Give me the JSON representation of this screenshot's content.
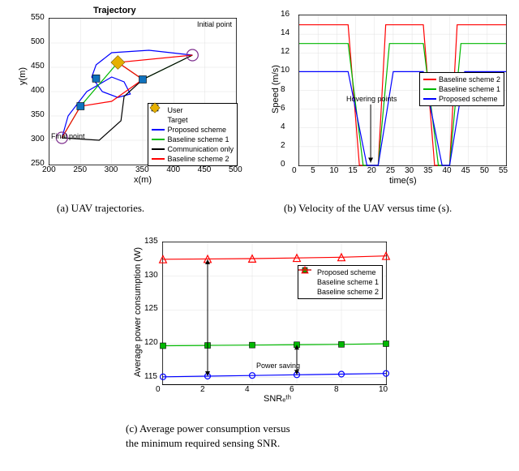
{
  "figA": {
    "type": "line-scatter",
    "title": "Trajectory",
    "xlabel": "x(m)",
    "ylabel": "y(m)",
    "xlim": [
      200,
      500
    ],
    "ylim": [
      250,
      550
    ],
    "xtick_step": 50,
    "ytick_step": 50,
    "grid_color": "#e0e0e0",
    "background_color": "#ffffff",
    "annotations": {
      "initial": "Initial point",
      "final": "Final point"
    },
    "users": {
      "color": "#1072bd",
      "marker": "square",
      "size": 9,
      "points": [
        [
          250,
          370
        ],
        [
          350,
          425
        ],
        [
          275,
          427
        ]
      ]
    },
    "target": {
      "color": "#e6b000",
      "marker": "diamond",
      "size": 11,
      "points": [
        [
          310,
          460
        ]
      ]
    },
    "markers_extra": {
      "initial_circle": {
        "x": 430,
        "y": 475,
        "stroke": "#7e2f8e"
      },
      "final_circle": {
        "x": 220,
        "y": 305,
        "stroke": "#7e2f8e"
      }
    },
    "series": {
      "proposed": {
        "color": "#0000ff",
        "width": 1.2,
        "pts": [
          [
            430,
            475
          ],
          [
            360,
            485
          ],
          [
            300,
            480
          ],
          [
            275,
            455
          ],
          [
            268,
            430
          ],
          [
            285,
            400
          ],
          [
            310,
            388
          ],
          [
            330,
            395
          ],
          [
            320,
            420
          ],
          [
            300,
            430
          ],
          [
            260,
            400
          ],
          [
            230,
            350
          ],
          [
            220,
            305
          ]
        ]
      },
      "baseline1": {
        "color": "#00b800",
        "width": 1.2,
        "pts": [
          [
            430,
            475
          ],
          [
            350,
            425
          ],
          [
            310,
            460
          ],
          [
            250,
            370
          ],
          [
            220,
            305
          ]
        ]
      },
      "commonly": {
        "color": "#000000",
        "width": 1.2,
        "pts": [
          [
            430,
            475
          ],
          [
            350,
            425
          ],
          [
            320,
            390
          ],
          [
            315,
            340
          ],
          [
            280,
            300
          ],
          [
            220,
            305
          ]
        ]
      },
      "baseline2": {
        "color": "#ff0000",
        "width": 1.2,
        "pts": [
          [
            430,
            475
          ],
          [
            310,
            460
          ],
          [
            350,
            425
          ],
          [
            300,
            380
          ],
          [
            250,
            370
          ],
          [
            220,
            305
          ]
        ]
      }
    },
    "legend": [
      {
        "label": "User",
        "type": "marker",
        "shape": "square",
        "color": "#1072bd"
      },
      {
        "label": "Target",
        "type": "marker",
        "shape": "diamond",
        "color": "#e6b000"
      },
      {
        "label": "Proposed scheme",
        "type": "line",
        "color": "#0000ff"
      },
      {
        "label": "Baseline scheme 1",
        "type": "line",
        "color": "#00b800"
      },
      {
        "label": "Communication only",
        "type": "line",
        "color": "#000000"
      },
      {
        "label": "Baseline scheme 2",
        "type": "line",
        "color": "#ff0000"
      }
    ]
  },
  "figB": {
    "type": "line",
    "xlabel": "time(s)",
    "ylabel": "Speed (m/s)",
    "xlim": [
      0,
      55
    ],
    "ylim": [
      0,
      16
    ],
    "xtick_step": 5,
    "ytick_step": 2,
    "grid_color": "#e0e0e0",
    "annotations": {
      "hover": "Hovering points"
    },
    "series": {
      "baseline2": {
        "color": "#ff0000",
        "width": 1.2,
        "pts": [
          [
            0,
            15
          ],
          [
            13,
            15
          ],
          [
            16,
            0
          ],
          [
            21,
            0
          ],
          [
            23,
            15
          ],
          [
            33,
            15
          ],
          [
            36,
            0
          ],
          [
            40,
            0
          ],
          [
            42,
            15
          ],
          [
            55,
            15
          ]
        ]
      },
      "baseline1": {
        "color": "#00b800",
        "width": 1.2,
        "pts": [
          [
            0,
            13
          ],
          [
            13,
            13
          ],
          [
            17,
            0
          ],
          [
            21,
            0
          ],
          [
            24,
            13
          ],
          [
            33,
            13
          ],
          [
            37,
            0
          ],
          [
            40,
            0
          ],
          [
            43,
            13
          ],
          [
            55,
            13
          ]
        ]
      },
      "proposed": {
        "color": "#0000ff",
        "width": 1.2,
        "pts": [
          [
            0,
            10
          ],
          [
            13,
            10
          ],
          [
            18,
            0
          ],
          [
            21,
            0
          ],
          [
            25,
            10
          ],
          [
            33,
            10
          ],
          [
            38,
            0
          ],
          [
            40,
            0
          ],
          [
            44,
            10
          ],
          [
            55,
            10
          ]
        ]
      }
    },
    "legend": [
      {
        "label": "Baseline scheme 2",
        "type": "line",
        "color": "#ff0000"
      },
      {
        "label": "Baseline scheme 1",
        "type": "line",
        "color": "#00b800"
      },
      {
        "label": "Proposed scheme",
        "type": "line",
        "color": "#0000ff"
      }
    ]
  },
  "figC": {
    "type": "line-marker",
    "xlabel": "SNRₑᵗʰ",
    "ylabel": "Average power consumption (W)",
    "xlim": [
      0,
      10
    ],
    "ylim": [
      114,
      135
    ],
    "xtick_step": 2,
    "yticks": [
      115,
      120,
      125,
      130,
      135
    ],
    "grid_color": "#e0e0e0",
    "annotations": {
      "saving": "Power saving"
    },
    "series": {
      "proposed": {
        "color": "#0000ff",
        "marker": "circle",
        "pts": [
          [
            0,
            115.1
          ],
          [
            2,
            115.2
          ],
          [
            4,
            115.3
          ],
          [
            6,
            115.4
          ],
          [
            8,
            115.5
          ],
          [
            10,
            115.6
          ]
        ]
      },
      "baseline1": {
        "color": "#00b800",
        "marker": "square",
        "pts": [
          [
            0,
            119.7
          ],
          [
            2,
            119.75
          ],
          [
            4,
            119.8
          ],
          [
            6,
            119.85
          ],
          [
            8,
            119.9
          ],
          [
            10,
            120.0
          ]
        ]
      },
      "baseline2": {
        "color": "#ff0000",
        "marker": "triangle",
        "pts": [
          [
            0,
            132.5
          ],
          [
            2,
            132.55
          ],
          [
            4,
            132.6
          ],
          [
            6,
            132.7
          ],
          [
            8,
            132.8
          ],
          [
            10,
            133.0
          ]
        ]
      }
    },
    "legend": [
      {
        "label": "Proposed scheme",
        "type": "line",
        "color": "#0000ff",
        "shape": "circle"
      },
      {
        "label": "Baseline scheme 1",
        "type": "line",
        "color": "#00b800",
        "shape": "square"
      },
      {
        "label": "Baseline scheme 2",
        "type": "line",
        "color": "#ff0000",
        "shape": "triangle"
      }
    ]
  },
  "captions": {
    "a": "(a) UAV trajectories.",
    "b": "(b) Velocity of the UAV versus time (s).",
    "c1": "(c)  Average  power  consumption  versus",
    "c2": "the minimum required sensing SNR."
  }
}
